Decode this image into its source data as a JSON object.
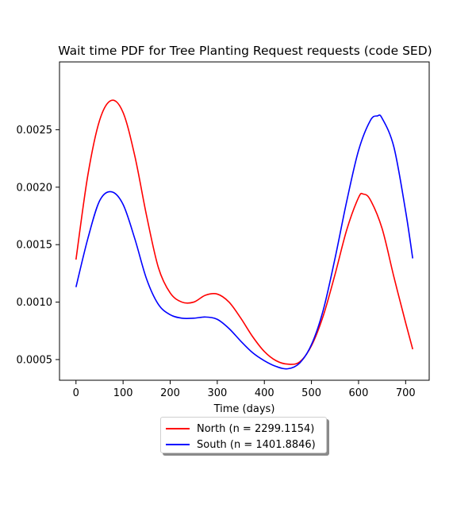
{
  "chart_data": {
    "type": "line",
    "title": "Wait time PDF for Tree Planting Request  requests (code SED)",
    "xlabel": "Time (days)",
    "ylabel": "",
    "xlim": [
      -35,
      750
    ],
    "ylim": [
      0.00032,
      0.00309
    ],
    "xticks": [
      0,
      100,
      200,
      300,
      400,
      500,
      600,
      700
    ],
    "xtick_labels": [
      "0",
      "100",
      "200",
      "300",
      "400",
      "500",
      "600",
      "700"
    ],
    "yticks": [
      0.0005,
      0.001,
      0.0015,
      0.002,
      0.0025
    ],
    "ytick_labels": [
      "0.0005",
      "0.0010",
      "0.0015",
      "0.0020",
      "0.0025"
    ],
    "grid": false,
    "legend_position": "below",
    "series": [
      {
        "name": "North (n = 2299.1154)",
        "color": "#ff0000",
        "points": [
          [
            0,
            0.00137
          ],
          [
            25,
            0.0021
          ],
          [
            50,
            0.00258
          ],
          [
            75,
            0.002755
          ],
          [
            100,
            0.00265
          ],
          [
            125,
            0.00227
          ],
          [
            150,
            0.00175
          ],
          [
            175,
            0.0013
          ],
          [
            200,
            0.00108
          ],
          [
            225,
            0.001
          ],
          [
            250,
            0.001
          ],
          [
            275,
            0.00106
          ],
          [
            300,
            0.00107
          ],
          [
            325,
            0.001
          ],
          [
            350,
            0.00086
          ],
          [
            375,
            0.0007
          ],
          [
            400,
            0.00057
          ],
          [
            425,
            0.00049
          ],
          [
            450,
            0.00046
          ],
          [
            475,
            0.00048
          ],
          [
            500,
            0.00062
          ],
          [
            525,
            0.00088
          ],
          [
            550,
            0.00124
          ],
          [
            575,
            0.00163
          ],
          [
            600,
            0.00191
          ],
          [
            610,
            0.00194
          ],
          [
            625,
            0.00189
          ],
          [
            650,
            0.00164
          ],
          [
            675,
            0.00122
          ],
          [
            700,
            0.00082
          ],
          [
            715,
            0.00059
          ]
        ]
      },
      {
        "name": "South (n = 1401.8846)",
        "color": "#0000ff",
        "points": [
          [
            0,
            0.00113
          ],
          [
            25,
            0.00155
          ],
          [
            50,
            0.00188
          ],
          [
            75,
            0.00196
          ],
          [
            100,
            0.00185
          ],
          [
            125,
            0.00155
          ],
          [
            150,
            0.0012
          ],
          [
            175,
            0.00098
          ],
          [
            200,
            0.00089
          ],
          [
            225,
            0.00086
          ],
          [
            250,
            0.00086
          ],
          [
            275,
            0.00087
          ],
          [
            300,
            0.00085
          ],
          [
            325,
            0.00077
          ],
          [
            350,
            0.00066
          ],
          [
            375,
            0.00056
          ],
          [
            400,
            0.00049
          ],
          [
            425,
            0.00044
          ],
          [
            450,
            0.00042
          ],
          [
            475,
            0.00047
          ],
          [
            500,
            0.00063
          ],
          [
            525,
            0.00093
          ],
          [
            550,
            0.00138
          ],
          [
            575,
            0.00188
          ],
          [
            600,
            0.00232
          ],
          [
            625,
            0.00258
          ],
          [
            640,
            0.00262
          ],
          [
            650,
            0.0026
          ],
          [
            675,
            0.00235
          ],
          [
            700,
            0.00179
          ],
          [
            715,
            0.00138
          ]
        ]
      }
    ]
  }
}
